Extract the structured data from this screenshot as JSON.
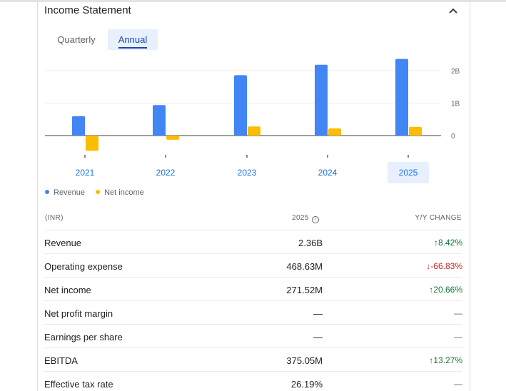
{
  "card": {
    "title": "Income Statement",
    "tabs": [
      {
        "label": "Quarterly",
        "selected": false
      },
      {
        "label": "Annual",
        "selected": true
      }
    ]
  },
  "chart_data": {
    "type": "bar",
    "categories": [
      "2021",
      "2022",
      "2023",
      "2024",
      "2025"
    ],
    "selected_category": "2025",
    "series": [
      {
        "name": "Revenue",
        "color": "#4285f4",
        "values": [
          0.6,
          0.94,
          1.86,
          2.18,
          2.36
        ]
      },
      {
        "name": "Net income",
        "color": "#fbbc04",
        "values": [
          -0.47,
          -0.13,
          0.28,
          0.22,
          0.27
        ]
      }
    ],
    "y_ticks": [
      {
        "value": 2,
        "label": "2B"
      },
      {
        "value": 1,
        "label": "1B"
      },
      {
        "value": 0,
        "label": "0"
      }
    ],
    "ylim": [
      -0.5,
      2.5
    ],
    "grid": true,
    "legend": "bottom-left",
    "unit": "B"
  },
  "table": {
    "header": {
      "currency": "(INR)",
      "year": "2025",
      "info_icon": "info-icon",
      "change": "Y/Y CHANGE"
    },
    "rows": [
      {
        "label": "Revenue",
        "value": "2.36B",
        "change": "8.42%",
        "direction": "up"
      },
      {
        "label": "Operating expense",
        "value": "468.63M",
        "change": "-66.83%",
        "direction": "down"
      },
      {
        "label": "Net income",
        "value": "271.52M",
        "change": "20.66%",
        "direction": "up"
      },
      {
        "label": "Net profit margin",
        "value": "—",
        "change": "—",
        "direction": "none"
      },
      {
        "label": "Earnings per share",
        "value": "—",
        "change": "—",
        "direction": "none"
      },
      {
        "label": "EBITDA",
        "value": "375.05M",
        "change": "13.27%",
        "direction": "up"
      },
      {
        "label": "Effective tax rate",
        "value": "26.19%",
        "change": "—",
        "direction": "none"
      }
    ]
  },
  "colors": {
    "up": "#137333",
    "down": "#c5221f",
    "accent": "#1a73e8",
    "tab_bg": "#e8f0fe"
  }
}
